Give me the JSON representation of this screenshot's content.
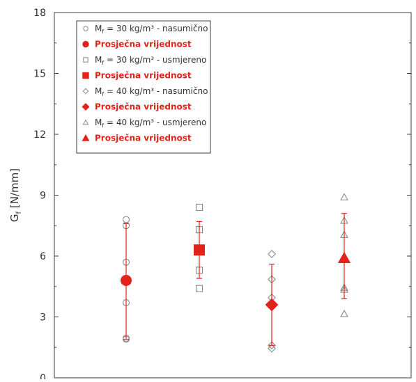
{
  "chart_data": {
    "type": "scatter",
    "title": "",
    "xlabel": "",
    "ylabel": {
      "main": "G",
      "sub": "f",
      "unit": " [N/mm]"
    },
    "ylim": [
      0,
      18
    ],
    "yticks": [
      "0",
      "3",
      "6",
      "9",
      "12",
      "15",
      "18"
    ],
    "grid": false,
    "legend_position": "top-left",
    "series": [
      {
        "name": {
          "pre": "M",
          "sub": "f",
          "post": " = 30 kg/m³ - nasumično"
        },
        "marker": "circle",
        "style": "open",
        "color": "#8a8a8a",
        "x": 1,
        "values": [
          7.8,
          7.5,
          5.7,
          3.7,
          1.95,
          1.9
        ]
      },
      {
        "name": {
          "pre": "Prosječna vrijednost",
          "sub": "",
          "post": ""
        },
        "marker": "circle",
        "style": "mean",
        "color": "#e2231a",
        "x": 1,
        "value": 4.8,
        "error": [
          1.9,
          7.6
        ]
      },
      {
        "name": {
          "pre": "M",
          "sub": "f",
          "post": " = 30 kg/m³ - usmjereno"
        },
        "marker": "square",
        "style": "open",
        "color": "#8a8a8a",
        "x": 2,
        "values": [
          8.4,
          7.3,
          5.3,
          4.4
        ]
      },
      {
        "name": {
          "pre": "Prosječna vrijednost",
          "sub": "",
          "post": ""
        },
        "marker": "square",
        "style": "mean",
        "color": "#e2231a",
        "x": 2,
        "value": 6.3,
        "error": [
          4.9,
          7.7
        ]
      },
      {
        "name": {
          "pre": "M",
          "sub": "f",
          "post": " = 40 kg/m³ - nasumično"
        },
        "marker": "diamond",
        "style": "open",
        "color": "#8a8a8a",
        "x": 3,
        "values": [
          6.1,
          4.85,
          3.95,
          1.6,
          1.45
        ]
      },
      {
        "name": {
          "pre": "Prosječna vrijednost",
          "sub": "",
          "post": ""
        },
        "marker": "diamond",
        "style": "mean",
        "color": "#e2231a",
        "x": 3,
        "value": 3.6,
        "error": [
          1.6,
          5.6
        ]
      },
      {
        "name": {
          "pre": "M",
          "sub": "f",
          "post": " = 40 kg/m³ - usmjereno"
        },
        "marker": "triangle",
        "style": "open",
        "color": "#8a8a8a",
        "x": 4,
        "values": [
          8.9,
          7.75,
          7.05,
          4.45,
          4.35,
          3.15
        ]
      },
      {
        "name": {
          "pre": "Prosječna vrijednost",
          "sub": "",
          "post": ""
        },
        "marker": "triangle",
        "style": "mean",
        "color": "#e2231a",
        "x": 4,
        "value": 5.9,
        "error": [
          3.9,
          8.1
        ]
      }
    ]
  }
}
